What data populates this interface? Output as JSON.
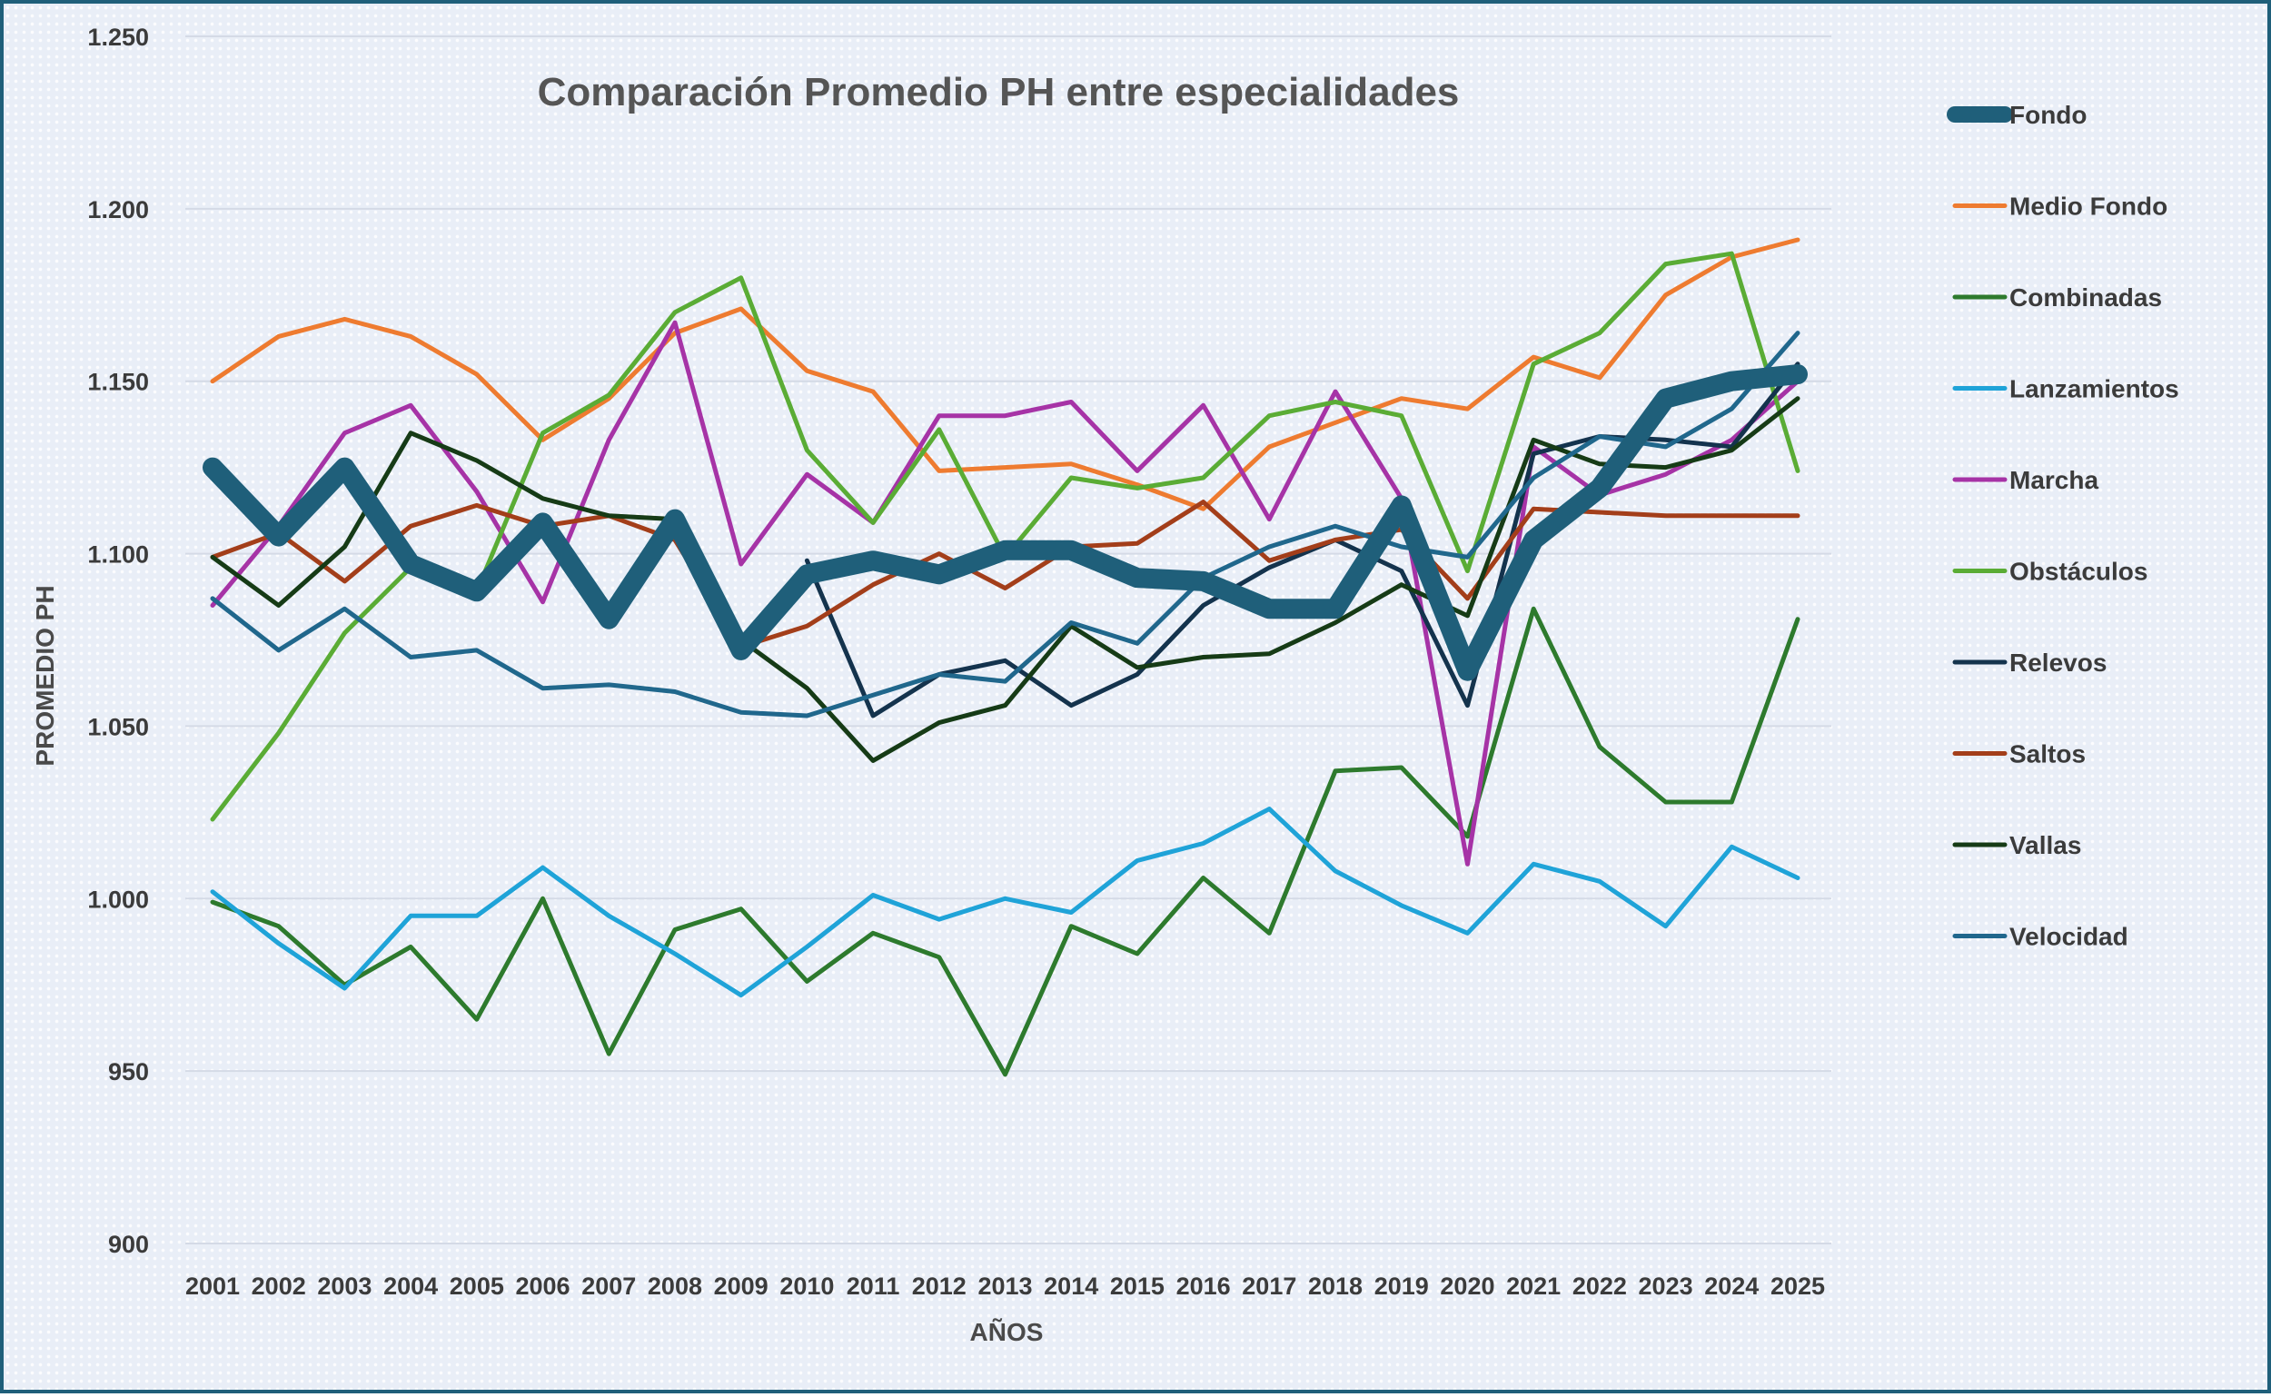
{
  "chart_data": {
    "type": "line",
    "title": "Comparación Promedio PH entre especialidades",
    "xlabel": "AÑOS",
    "ylabel": "PROMEDIO PH",
    "ylim": [
      900,
      1250
    ],
    "y_ticks": [
      900,
      950,
      1000,
      1050,
      1100,
      1150,
      1200,
      1250
    ],
    "y_tick_labels": [
      "900",
      "950",
      "1.000",
      "1.050",
      "1.100",
      "1.150",
      "1.200",
      "1.250"
    ],
    "grid": true,
    "legend_position": "right",
    "x": [
      "2001",
      "2002",
      "2003",
      "2004",
      "2005",
      "2006",
      "2007",
      "2008",
      "2009",
      "2010",
      "2011",
      "2012",
      "2013",
      "2014",
      "2015",
      "2016",
      "2017",
      "2018",
      "2019",
      "2020",
      "2021",
      "2022",
      "2023",
      "2024",
      "2025"
    ],
    "series": [
      {
        "name": "Fondo",
        "color": "#1f5f7a",
        "bold": true,
        "values": [
          1125,
          1105,
          1125,
          1097,
          1089,
          1109,
          1081,
          1110,
          1072,
          1094,
          1098,
          1094,
          1101,
          1101,
          1093,
          1092,
          1084,
          1084,
          1114,
          1066,
          1104,
          1119,
          1145,
          1150,
          1152
        ]
      },
      {
        "name": "Medio Fondo",
        "color": "#ee7b30",
        "values": [
          1150,
          1163,
          1168,
          1163,
          1152,
          1133,
          1145,
          1164,
          1171,
          1153,
          1147,
          1124,
          1125,
          1126,
          1120,
          1113,
          1131,
          1138,
          1145,
          1142,
          1157,
          1151,
          1175,
          1186,
          1191
        ]
      },
      {
        "name": "Combinadas",
        "color": "#2d7a2d",
        "values": [
          999,
          992,
          975,
          986,
          965,
          1000,
          955,
          991,
          997,
          976,
          990,
          983,
          949,
          992,
          984,
          1006,
          990,
          1037,
          1038,
          1018,
          1084,
          1044,
          1028,
          1028,
          1081
        ]
      },
      {
        "name": "Lanzamientos",
        "color": "#1fa3d8",
        "values": [
          1002,
          987,
          974,
          995,
          995,
          1009,
          995,
          984,
          972,
          986,
          1001,
          994,
          1000,
          996,
          1011,
          1016,
          1026,
          1008,
          998,
          990,
          1010,
          1005,
          992,
          1015,
          1006
        ]
      },
      {
        "name": "Marcha",
        "color": "#a633a6",
        "values": [
          1085,
          1108,
          1135,
          1143,
          1118,
          1086,
          1133,
          1167,
          1097,
          1123,
          1109,
          1140,
          1140,
          1144,
          1124,
          1143,
          1110,
          1147,
          1116,
          1010,
          1131,
          1117,
          1123,
          1133,
          1150
        ]
      },
      {
        "name": "Obstáculos",
        "color": "#5aac35",
        "values": [
          1023,
          1048,
          1077,
          1096,
          1089,
          1135,
          1146,
          1170,
          1180,
          1130,
          1109,
          1136,
          1099,
          1122,
          1119,
          1122,
          1140,
          1144,
          1140,
          1095,
          1155,
          1164,
          1184,
          1187,
          1124
        ]
      },
      {
        "name": "Relevos",
        "color": "#14334d",
        "values": [
          null,
          null,
          null,
          null,
          null,
          null,
          null,
          null,
          null,
          1098,
          1053,
          1065,
          1069,
          1056,
          1065,
          1085,
          1096,
          1104,
          1095,
          1056,
          1129,
          1134,
          1133,
          1131,
          1155
        ]
      },
      {
        "name": "Saltos",
        "color": "#a33e1a",
        "values": [
          1099,
          1106,
          1092,
          1108,
          1114,
          1108,
          1111,
          1104,
          1073,
          1079,
          1091,
          1100,
          1090,
          1102,
          1103,
          1115,
          1098,
          1104,
          1107,
          1087,
          1113,
          1112,
          1111,
          1111,
          1111
        ]
      },
      {
        "name": "Vallas",
        "color": "#163b16",
        "values": [
          1099,
          1085,
          1102,
          1135,
          1127,
          1116,
          1111,
          1110,
          1075,
          1061,
          1040,
          1051,
          1056,
          1079,
          1067,
          1070,
          1071,
          1080,
          1091,
          1082,
          1133,
          1126,
          1125,
          1130,
          1145
        ]
      },
      {
        "name": "Velocidad",
        "color": "#20678c",
        "values": [
          1087,
          1072,
          1084,
          1070,
          1072,
          1061,
          1062,
          1060,
          1054,
          1053,
          1059,
          1065,
          1063,
          1080,
          1074,
          1093,
          1102,
          1108,
          1102,
          1099,
          1122,
          1134,
          1131,
          1142,
          1164
        ]
      }
    ]
  }
}
